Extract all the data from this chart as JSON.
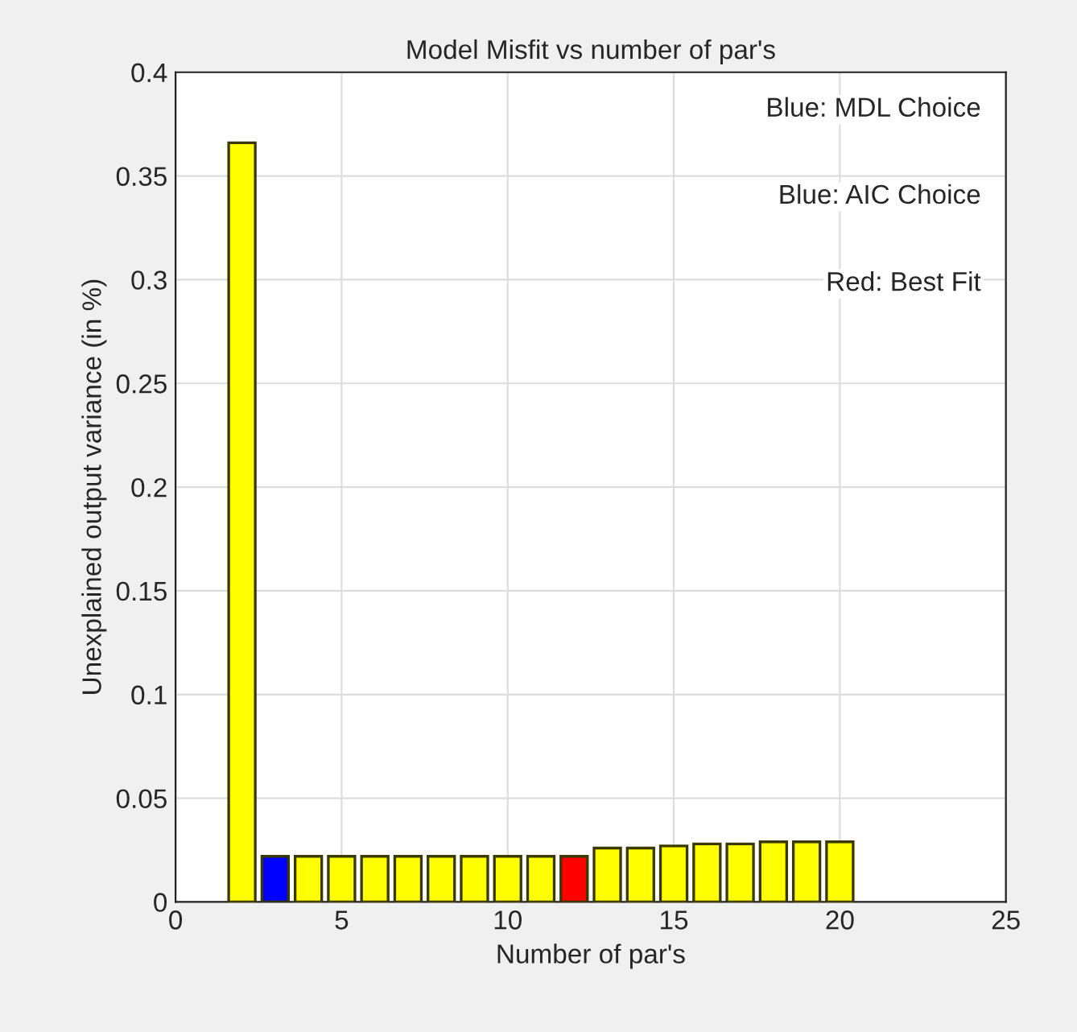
{
  "chart_data": {
    "type": "bar",
    "title": "Model Misfit vs number of par's",
    "xlabel": "Number of par's",
    "ylabel": "Unexplained output variance (in %)",
    "x": [
      2,
      3,
      4,
      5,
      6,
      7,
      8,
      9,
      10,
      11,
      12,
      13,
      14,
      15,
      16,
      17,
      18,
      19,
      20
    ],
    "values": [
      0.366,
      0.022,
      0.022,
      0.022,
      0.022,
      0.022,
      0.022,
      0.022,
      0.022,
      0.022,
      0.022,
      0.026,
      0.026,
      0.027,
      0.028,
      0.028,
      0.029,
      0.029,
      0.029
    ],
    "colors": [
      "#ffff00",
      "#0000ff",
      "#ffff00",
      "#ffff00",
      "#ffff00",
      "#ffff00",
      "#ffff00",
      "#ffff00",
      "#ffff00",
      "#ffff00",
      "#ff0000",
      "#ffff00",
      "#ffff00",
      "#ffff00",
      "#ffff00",
      "#ffff00",
      "#ffff00",
      "#ffff00",
      "#ffff00"
    ],
    "xlim": [
      0,
      25
    ],
    "xticks": [
      0,
      5,
      10,
      15,
      20,
      25
    ],
    "ylim": [
      0,
      0.4
    ],
    "yticks": [
      0,
      0.05,
      0.1,
      0.15,
      0.2,
      0.25,
      0.3,
      0.35,
      0.4
    ],
    "grid": true,
    "annotations": [
      "Blue: MDL Choice",
      "Blue: AIC Choice",
      "Red: Best Fit"
    ]
  }
}
